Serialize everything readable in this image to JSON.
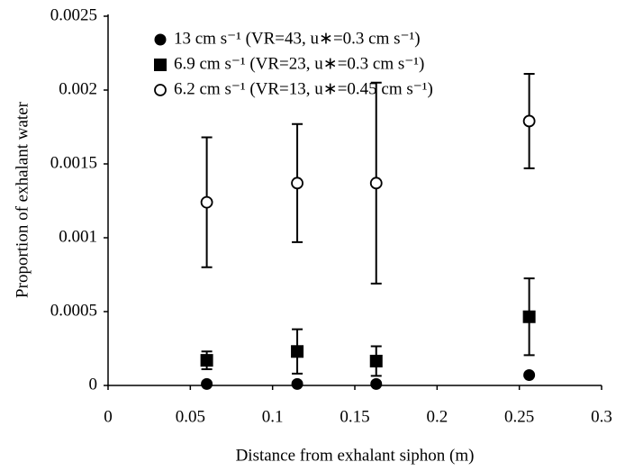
{
  "chart_data": {
    "type": "scatter",
    "x_label": "Distance from exhalant siphon (m)",
    "y_label": "Proportion of exhalant water",
    "xlim": [
      0,
      0.3
    ],
    "xticks": [
      0,
      0.05,
      0.1,
      0.15,
      0.2,
      0.25,
      0.3
    ],
    "ylim": [
      0,
      0.0025
    ],
    "yticks": [
      0,
      0.0005,
      0.001,
      0.0015,
      0.002,
      0.0025
    ],
    "series": [
      {
        "name": "13 cm s⁻¹ (VR=43, u∗=0.3 cm s⁻¹)",
        "marker": "filled-circle",
        "color": "#000000",
        "x": [
          0.06,
          0.115,
          0.163,
          0.256
        ],
        "values": [
          1e-05,
          1e-05,
          1e-05,
          7e-05
        ]
      },
      {
        "name": "6.9 cm s⁻¹ (VR=23, u∗=0.3 cm s⁻¹)",
        "marker": "filled-square",
        "color": "#000000",
        "x": [
          0.06,
          0.115,
          0.163,
          0.256
        ],
        "values": [
          0.00017,
          0.00023,
          0.000165,
          0.000465
        ],
        "errors": [
          6e-05,
          0.00015,
          0.0001,
          0.00026
        ]
      },
      {
        "name": "6.2 cm s⁻¹ (VR=13, u∗=0.45 cm s⁻¹)",
        "marker": "open-circle",
        "color": "#000000",
        "x": [
          0.06,
          0.115,
          0.163,
          0.256
        ],
        "values": [
          0.00124,
          0.00137,
          0.00137,
          0.00179
        ],
        "errors": [
          0.00044,
          0.0004,
          0.00068,
          0.00032
        ]
      }
    ]
  }
}
